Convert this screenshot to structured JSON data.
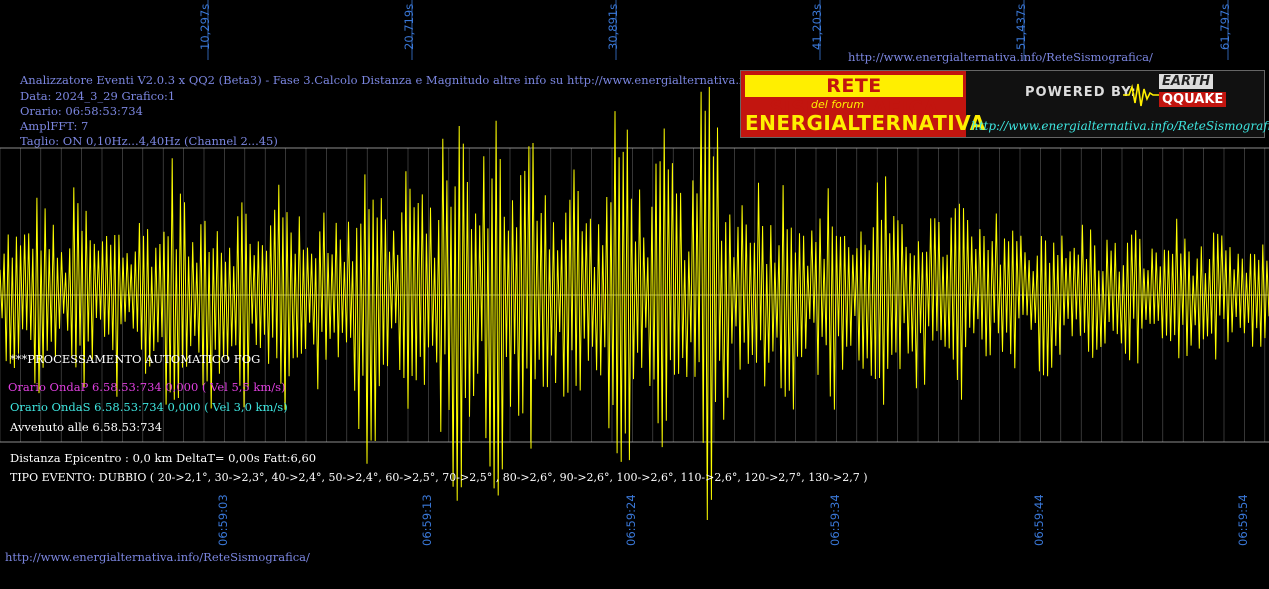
{
  "header": {
    "top_url": "http://www.energialternativa.info/ReteSismografica/",
    "info_lines": [
      "Analizzatore Eventi V2.0.3 x QQ2 (Beta3) - Fase 3.Calcolo Distanza e Magnitudo altre info su http://www.energialternativa.info/ReteSism",
      "Data: 2024_3_29 Grafico:1",
      "Orario: 06:58:53:734",
      "AmplFFT: 7",
      "Taglio: ON 0,10Hz...4,40Hz       (Channel 2...45)"
    ]
  },
  "logo": {
    "title_top": "RETE SISMOGRAFICA",
    "subtitle": "del forum",
    "title_bottom": "ENERGIALTERNATIVA",
    "powered": "POWERED BY:",
    "earth": "EARTH",
    "qquake": "QQUAKE",
    "url": "http://www.energialternativa.info/ReteSismografica"
  },
  "processing": {
    "title": "***PROCESSAMENTO AUTOMATICO FOG",
    "onda_p": "Orario OndaP 6.58.53:734  0,000 ( Vel 5,5 km/s)",
    "onda_s": "Orario OndaS 6.58.53:734  0,000 ( Vel 3,0 km/s)",
    "avvenuto": "Avvenuto alle 6.58.53:734",
    "distanza": "Distanza Epicentro : 0,0 km DeltaT= 0,00s  Fatt:6,60",
    "tipo_evento": "TIPO EVENTO: DUBBIO ( 20->2,1°, 30->2,3°, 40->2,4°, 50->2,4°, 60->2,5°, 70->2,5° , 80->2,6°, 90->2,6°, 100->2,6°, 110->2,6°, 120->2,7°, 130->2,7 )"
  },
  "footer": {
    "url": "http://www.energialternativa.info/ReteSismografica/"
  },
  "colors": {
    "background": "#000000",
    "trace": "#ffff00",
    "grid": "#5a5a5a",
    "axis_labels": "#3a78d8",
    "info_text": "#7b86e0"
  },
  "chart_data": {
    "type": "line",
    "title": "",
    "xlabel": "",
    "ylabel": "",
    "top_tick_labels": [
      "10,297s",
      "20,719s",
      "30,891s",
      "41,203s",
      "51,437s",
      "61,797s"
    ],
    "bottom_tick_labels": [
      "06:59:03",
      "06:59:13",
      "06:59:24",
      "06:59:34",
      "06:59:44",
      "06:59:54"
    ],
    "grid": true,
    "series": [
      {
        "values": [
          0.2,
          0.55,
          -0.35,
          0.6,
          -0.7,
          0.45,
          -0.25,
          0.7,
          -0.6,
          0.35,
          -0.45,
          0.65,
          -0.3,
          0.5,
          -0.55,
          0.4,
          0.9,
          -0.8,
          0.3,
          -0.6,
          0.75,
          -0.4,
          0.55,
          -0.7,
          0.45,
          -0.35,
          0.85,
          -0.9,
          0.5,
          -0.3,
          0.7,
          -0.65,
          0.4,
          -0.5,
          1.0,
          -1.1,
          0.6,
          -0.45,
          0.95,
          -0.85,
          0.5,
          -0.7,
          1.2,
          -1.3,
          0.8,
          -0.6,
          1.4,
          -1.2,
          0.65,
          -0.9,
          1.1,
          -1.0,
          0.55,
          -0.75,
          0.9,
          -0.6,
          0.45,
          -0.8,
          1.3,
          -1.25,
          0.7,
          -0.55,
          1.05,
          -0.95,
          0.6,
          -0.7,
          1.5,
          -1.45,
          0.75,
          -0.5,
          0.85,
          -0.8,
          0.5,
          -0.65,
          0.9,
          -0.7,
          0.4,
          -0.55,
          0.75,
          -0.6,
          0.35,
          -0.5,
          0.8,
          -0.75,
          0.5,
          -0.4,
          0.65,
          -0.6,
          0.45,
          -0.55,
          0.7,
          -0.5,
          0.4,
          -0.45,
          0.6,
          -0.55,
          0.35,
          -0.4,
          0.55,
          -0.5,
          0.3,
          -0.45,
          0.5,
          -0.35,
          0.4,
          -0.3,
          0.45,
          -0.4,
          0.3,
          -0.35,
          0.5,
          -0.45,
          0.35,
          -0.3,
          0.4,
          -0.35,
          0.25,
          -0.3,
          0.35,
          -0.3
        ]
      }
    ]
  }
}
